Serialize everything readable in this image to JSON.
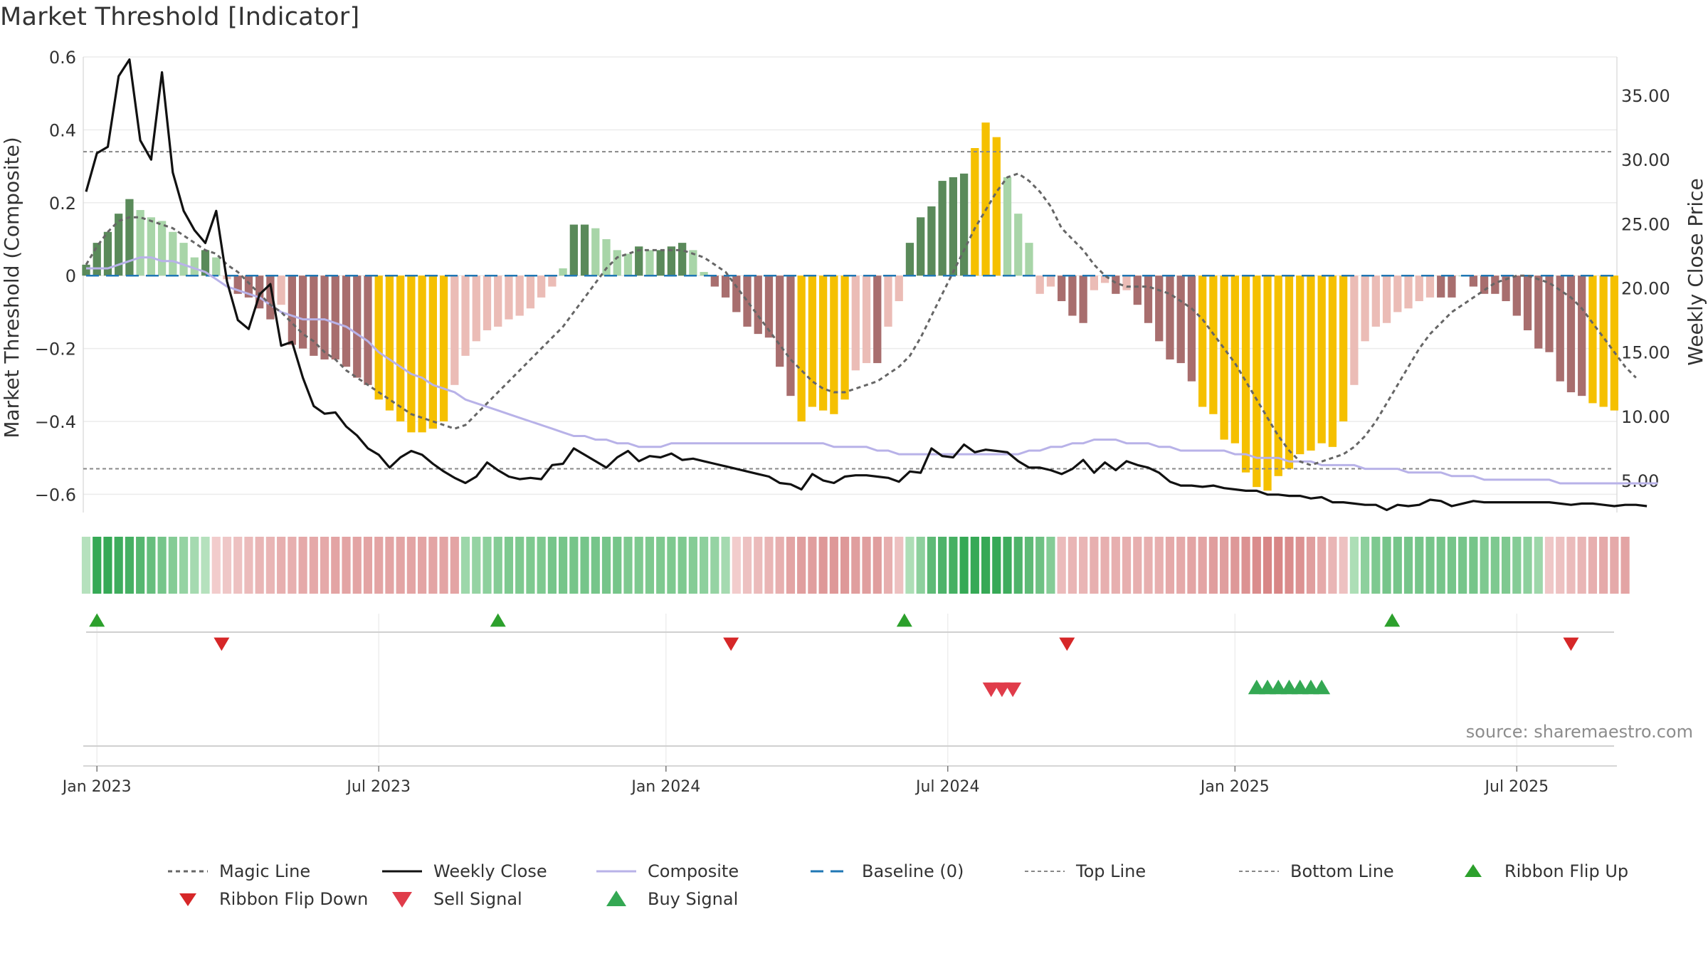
{
  "chart_data": {
    "type": "bar",
    "title": "Market Threshold [Indicator]",
    "ylabel_left": "Market Threshold (Composite)",
    "ylabel_right": "Weekly Close Price",
    "source": "source: sharemaestro.com",
    "ylim_left": [
      -0.65,
      0.6
    ],
    "ylim_right": [
      2.5,
      38.0
    ],
    "left_ticks": [
      {
        "v": 0.6,
        "label": "0.6"
      },
      {
        "v": 0.4,
        "label": "0.4"
      },
      {
        "v": 0.2,
        "label": "0.2"
      },
      {
        "v": 0,
        "label": "0"
      },
      {
        "v": -0.2,
        "label": "−0.2"
      },
      {
        "v": -0.4,
        "label": "−0.4"
      },
      {
        "v": -0.6,
        "label": "−0.6"
      }
    ],
    "right_ticks": [
      {
        "v": 35,
        "label": "35.00"
      },
      {
        "v": 30,
        "label": "30.00"
      },
      {
        "v": 25,
        "label": "25.00"
      },
      {
        "v": 20,
        "label": "20.00"
      },
      {
        "v": 15,
        "label": "15.00"
      },
      {
        "v": 10,
        "label": "10.00"
      },
      {
        "v": 5,
        "label": "5.00"
      }
    ],
    "x_ticks": [
      {
        "week": 1,
        "label": "Jan 2023"
      },
      {
        "week": 27,
        "label": "Jul 2023"
      },
      {
        "week": 53.5,
        "label": "Jan 2024"
      },
      {
        "week": 79.5,
        "label": "Jul 2024"
      },
      {
        "week": 106,
        "label": "Jan 2025"
      },
      {
        "week": 132,
        "label": "Jul 2025"
      }
    ],
    "top_line": 0.34,
    "bottom_line": -0.53,
    "baseline": 0,
    "composite": [
      0.02,
      0.02,
      0.02,
      0.03,
      0.04,
      0.05,
      0.05,
      0.04,
      0.04,
      0.03,
      0.02,
      0.01,
      -0.01,
      -0.03,
      -0.04,
      -0.05,
      -0.06,
      -0.08,
      -0.1,
      -0.11,
      -0.12,
      -0.12,
      -0.12,
      -0.13,
      -0.14,
      -0.16,
      -0.18,
      -0.21,
      -0.23,
      -0.25,
      -0.27,
      -0.28,
      -0.3,
      -0.31,
      -0.32,
      -0.34,
      -0.35,
      -0.36,
      -0.37,
      -0.38,
      -0.39,
      -0.4,
      -0.41,
      -0.42,
      -0.43,
      -0.44,
      -0.44,
      -0.45,
      -0.45,
      -0.46,
      -0.46,
      -0.47,
      -0.47,
      -0.47,
      -0.46,
      -0.46,
      -0.46,
      -0.46,
      -0.46,
      -0.46,
      -0.46,
      -0.46,
      -0.46,
      -0.46,
      -0.46,
      -0.46,
      -0.46,
      -0.46,
      -0.46,
      -0.47,
      -0.47,
      -0.47,
      -0.47,
      -0.48,
      -0.48,
      -0.49,
      -0.49,
      -0.49,
      -0.49,
      -0.49,
      -0.49,
      -0.49,
      -0.49,
      -0.49,
      -0.49,
      -0.49,
      -0.49,
      -0.48,
      -0.48,
      -0.47,
      -0.47,
      -0.46,
      -0.46,
      -0.45,
      -0.45,
      -0.45,
      -0.46,
      -0.46,
      -0.46,
      -0.47,
      -0.47,
      -0.48,
      -0.48,
      -0.48,
      -0.48,
      -0.48,
      -0.49,
      -0.49,
      -0.5,
      -0.5,
      -0.5,
      -0.51,
      -0.51,
      -0.51,
      -0.52,
      -0.52,
      -0.52,
      -0.52,
      -0.53,
      -0.53,
      -0.53,
      -0.53,
      -0.54,
      -0.54,
      -0.54,
      -0.54,
      -0.55,
      -0.55,
      -0.55,
      -0.56,
      -0.56,
      -0.56,
      -0.56,
      -0.56,
      -0.56,
      -0.56,
      -0.57,
      -0.57,
      -0.57,
      -0.57,
      -0.57,
      -0.57,
      -0.57,
      -0.57,
      -0.57,
      -0.57
    ],
    "magic_line": [
      0.03,
      0.08,
      0.12,
      0.15,
      0.16,
      0.16,
      0.15,
      0.14,
      0.13,
      0.11,
      0.09,
      0.07,
      0.06,
      0.03,
      0.01,
      -0.02,
      -0.05,
      -0.08,
      -0.1,
      -0.13,
      -0.16,
      -0.18,
      -0.21,
      -0.23,
      -0.26,
      -0.28,
      -0.3,
      -0.32,
      -0.34,
      -0.36,
      -0.38,
      -0.39,
      -0.4,
      -0.41,
      -0.42,
      -0.41,
      -0.38,
      -0.35,
      -0.32,
      -0.29,
      -0.26,
      -0.23,
      -0.2,
      -0.17,
      -0.14,
      -0.1,
      -0.06,
      -0.02,
      0.02,
      0.05,
      0.06,
      0.07,
      0.07,
      0.07,
      0.07,
      0.07,
      0.06,
      0.05,
      0.03,
      0.01,
      -0.03,
      -0.07,
      -0.11,
      -0.15,
      -0.19,
      -0.23,
      -0.26,
      -0.29,
      -0.31,
      -0.32,
      -0.32,
      -0.31,
      -0.3,
      -0.29,
      -0.27,
      -0.25,
      -0.22,
      -0.17,
      -0.11,
      -0.05,
      0.01,
      0.07,
      0.13,
      0.18,
      0.23,
      0.27,
      0.28,
      0.26,
      0.23,
      0.19,
      0.13,
      0.1,
      0.07,
      0.03,
      0.0,
      -0.02,
      -0.03,
      -0.03,
      -0.03,
      -0.04,
      -0.05,
      -0.07,
      -0.09,
      -0.12,
      -0.16,
      -0.2,
      -0.24,
      -0.29,
      -0.34,
      -0.39,
      -0.44,
      -0.48,
      -0.51,
      -0.52,
      -0.51,
      -0.5,
      -0.49,
      -0.47,
      -0.44,
      -0.4,
      -0.35,
      -0.3,
      -0.25,
      -0.2,
      -0.16,
      -0.13,
      -0.1,
      -0.08,
      -0.06,
      -0.04,
      -0.02,
      -0.01,
      0.0,
      0.0,
      -0.01,
      -0.02,
      -0.04,
      -0.06,
      -0.09,
      -0.13,
      -0.17,
      -0.21,
      -0.25,
      -0.28
    ],
    "weekly_close": [
      27.5,
      30.5,
      31.0,
      36.5,
      37.8,
      31.5,
      30.0,
      36.8,
      29.0,
      26.0,
      24.5,
      23.5,
      26.0,
      20.5,
      17.5,
      16.8,
      19.5,
      20.3,
      15.5,
      15.8,
      13.0,
      10.8,
      10.2,
      10.3,
      9.2,
      8.5,
      7.5,
      7.0,
      6.0,
      6.8,
      7.3,
      7.0,
      6.3,
      5.7,
      5.2,
      4.8,
      5.3,
      6.4,
      5.8,
      5.3,
      5.1,
      5.2,
      5.1,
      6.2,
      6.3,
      7.5,
      7.0,
      6.5,
      6.0,
      6.8,
      7.3,
      6.5,
      6.9,
      6.8,
      7.1,
      6.6,
      6.7,
      6.5,
      6.3,
      6.1,
      5.9,
      5.7,
      5.5,
      5.3,
      4.8,
      4.7,
      4.3,
      5.5,
      5.0,
      4.8,
      5.3,
      5.4,
      5.4,
      5.3,
      5.2,
      4.9,
      5.7,
      5.6,
      7.5,
      6.9,
      6.8,
      7.8,
      7.2,
      7.4,
      7.3,
      7.2,
      6.5,
      6.0,
      6.0,
      5.8,
      5.5,
      5.9,
      6.6,
      5.6,
      6.4,
      5.8,
      6.5,
      6.2,
      6.0,
      5.6,
      4.9,
      4.6,
      4.6,
      4.5,
      4.6,
      4.4,
      4.3,
      4.2,
      4.2,
      3.9,
      3.9,
      3.8,
      3.8,
      3.6,
      3.7,
      3.3,
      3.3,
      3.2,
      3.1,
      3.1,
      2.7,
      3.1,
      3.0,
      3.1,
      3.5,
      3.4,
      3.0,
      3.2,
      3.4,
      3.3,
      3.3,
      3.3,
      3.3,
      3.3,
      3.3,
      3.3,
      3.2,
      3.1,
      3.2,
      3.2,
      3.1,
      3.0,
      3.1,
      3.1,
      3.0
    ],
    "bars": [
      0.03,
      0.09,
      0.12,
      0.17,
      0.21,
      0.18,
      0.16,
      0.15,
      0.12,
      0.09,
      0.05,
      0.07,
      0.05,
      -0.01,
      -0.05,
      -0.06,
      -0.09,
      -0.12,
      -0.08,
      -0.19,
      -0.2,
      -0.22,
      -0.23,
      -0.23,
      -0.25,
      -0.28,
      -0.3,
      -0.34,
      -0.37,
      -0.4,
      -0.43,
      -0.43,
      -0.42,
      -0.4,
      -0.3,
      -0.22,
      -0.18,
      -0.15,
      -0.14,
      -0.12,
      -0.11,
      -0.09,
      -0.06,
      -0.03,
      0.02,
      0.14,
      0.14,
      0.13,
      0.1,
      0.07,
      0.06,
      0.08,
      0.07,
      0.07,
      0.08,
      0.09,
      0.07,
      0.01,
      -0.03,
      -0.06,
      -0.1,
      -0.14,
      -0.16,
      -0.17,
      -0.25,
      -0.33,
      -0.4,
      -0.36,
      -0.37,
      -0.38,
      -0.34,
      -0.26,
      -0.24,
      -0.24,
      -0.14,
      -0.07,
      0.09,
      0.16,
      0.19,
      0.26,
      0.27,
      0.28,
      0.35,
      0.42,
      0.38,
      0.27,
      0.17,
      0.09,
      -0.05,
      -0.03,
      -0.07,
      -0.11,
      -0.13,
      -0.04,
      -0.02,
      -0.05,
      -0.04,
      -0.08,
      -0.13,
      -0.18,
      -0.23,
      -0.24,
      -0.29,
      -0.36,
      -0.38,
      -0.45,
      -0.46,
      -0.54,
      -0.58,
      -0.59,
      -0.55,
      -0.53,
      -0.49,
      -0.48,
      -0.46,
      -0.47,
      -0.4,
      -0.3,
      -0.18,
      -0.14,
      -0.13,
      -0.1,
      -0.09,
      -0.07,
      -0.06,
      -0.06,
      -0.06,
      0.0,
      -0.03,
      -0.05,
      -0.05,
      -0.07,
      -0.11,
      -0.15,
      -0.2,
      -0.21,
      -0.29,
      -0.32,
      -0.33,
      -0.35,
      -0.36,
      -0.37
    ],
    "ribbon": [
      0.15,
      0.95,
      0.95,
      0.9,
      0.85,
      0.75,
      0.65,
      0.55,
      0.45,
      0.35,
      0.25,
      0.15,
      -0.15,
      -0.2,
      -0.25,
      -0.3,
      -0.35,
      -0.35,
      -0.4,
      -0.4,
      -0.45,
      -0.45,
      -0.45,
      -0.5,
      -0.5,
      -0.5,
      -0.5,
      -0.5,
      -0.5,
      -0.5,
      -0.5,
      -0.5,
      -0.5,
      -0.5,
      -0.5,
      0.3,
      0.35,
      0.4,
      0.45,
      0.5,
      0.5,
      0.5,
      0.5,
      0.55,
      0.55,
      0.55,
      0.55,
      0.55,
      0.55,
      0.55,
      0.5,
      0.5,
      0.5,
      0.5,
      0.5,
      0.5,
      0.45,
      0.4,
      0.35,
      0.25,
      -0.15,
      -0.25,
      -0.3,
      -0.35,
      -0.4,
      -0.5,
      -0.55,
      -0.55,
      -0.6,
      -0.6,
      -0.6,
      -0.55,
      -0.55,
      -0.55,
      -0.4,
      -0.25,
      0.2,
      0.4,
      0.7,
      0.8,
      0.85,
      0.95,
      0.95,
      0.95,
      0.95,
      0.9,
      0.8,
      0.7,
      0.6,
      0.45,
      -0.3,
      -0.35,
      -0.35,
      -0.4,
      -0.4,
      -0.4,
      -0.4,
      -0.4,
      -0.4,
      -0.4,
      -0.45,
      -0.45,
      -0.5,
      -0.5,
      -0.55,
      -0.55,
      -0.6,
      -0.65,
      -0.7,
      -0.75,
      -0.75,
      -0.7,
      -0.65,
      -0.55,
      -0.45,
      -0.35,
      -0.25,
      0.2,
      0.4,
      0.5,
      0.55,
      0.55,
      0.55,
      0.55,
      0.55,
      0.55,
      0.55,
      0.55,
      0.55,
      0.5,
      0.5,
      0.5,
      0.45,
      0.4,
      0.3,
      -0.2,
      -0.25,
      -0.3,
      -0.35,
      -0.4,
      -0.45,
      -0.45,
      -0.5
    ],
    "ribbon_flip_up_weeks": [
      1,
      38,
      75.5,
      120.5
    ],
    "ribbon_flip_down_weeks": [
      12.5,
      59.5,
      90.5,
      137
    ],
    "sell_signal_weeks": [
      83.5,
      84.5,
      85.5
    ],
    "buy_signal_weeks": [
      108,
      109,
      110,
      111,
      112,
      113,
      114
    ],
    "legend": [
      {
        "key": "magic",
        "label": "Magic Line"
      },
      {
        "key": "close",
        "label": "Weekly Close"
      },
      {
        "key": "composite",
        "label": "Composite"
      },
      {
        "key": "baseline",
        "label": "Baseline (0)"
      },
      {
        "key": "top",
        "label": "Top Line"
      },
      {
        "key": "bottom",
        "label": "Bottom Line"
      },
      {
        "key": "flipup",
        "label": "Ribbon Flip Up"
      },
      {
        "key": "flipdown",
        "label": "Ribbon Flip Down"
      },
      {
        "key": "sell",
        "label": "Sell Signal"
      },
      {
        "key": "buy",
        "label": "Buy Signal"
      }
    ],
    "colors": {
      "pos_strong": "#5a8a5a",
      "pos_weak": "#a8d5a8",
      "neg_strong": "#a86e6e",
      "neg_weak": "#ebbcb6",
      "extreme": "#f5c000",
      "close": "#111111",
      "composite": "#b8b2e8",
      "magic": "#666666",
      "baseline": "#1f77b4",
      "thresholds": "#888888",
      "flip_up": "#2ca02c",
      "flip_down": "#d62728",
      "sell": "#e03c4a",
      "buy": "#34a853"
    }
  }
}
